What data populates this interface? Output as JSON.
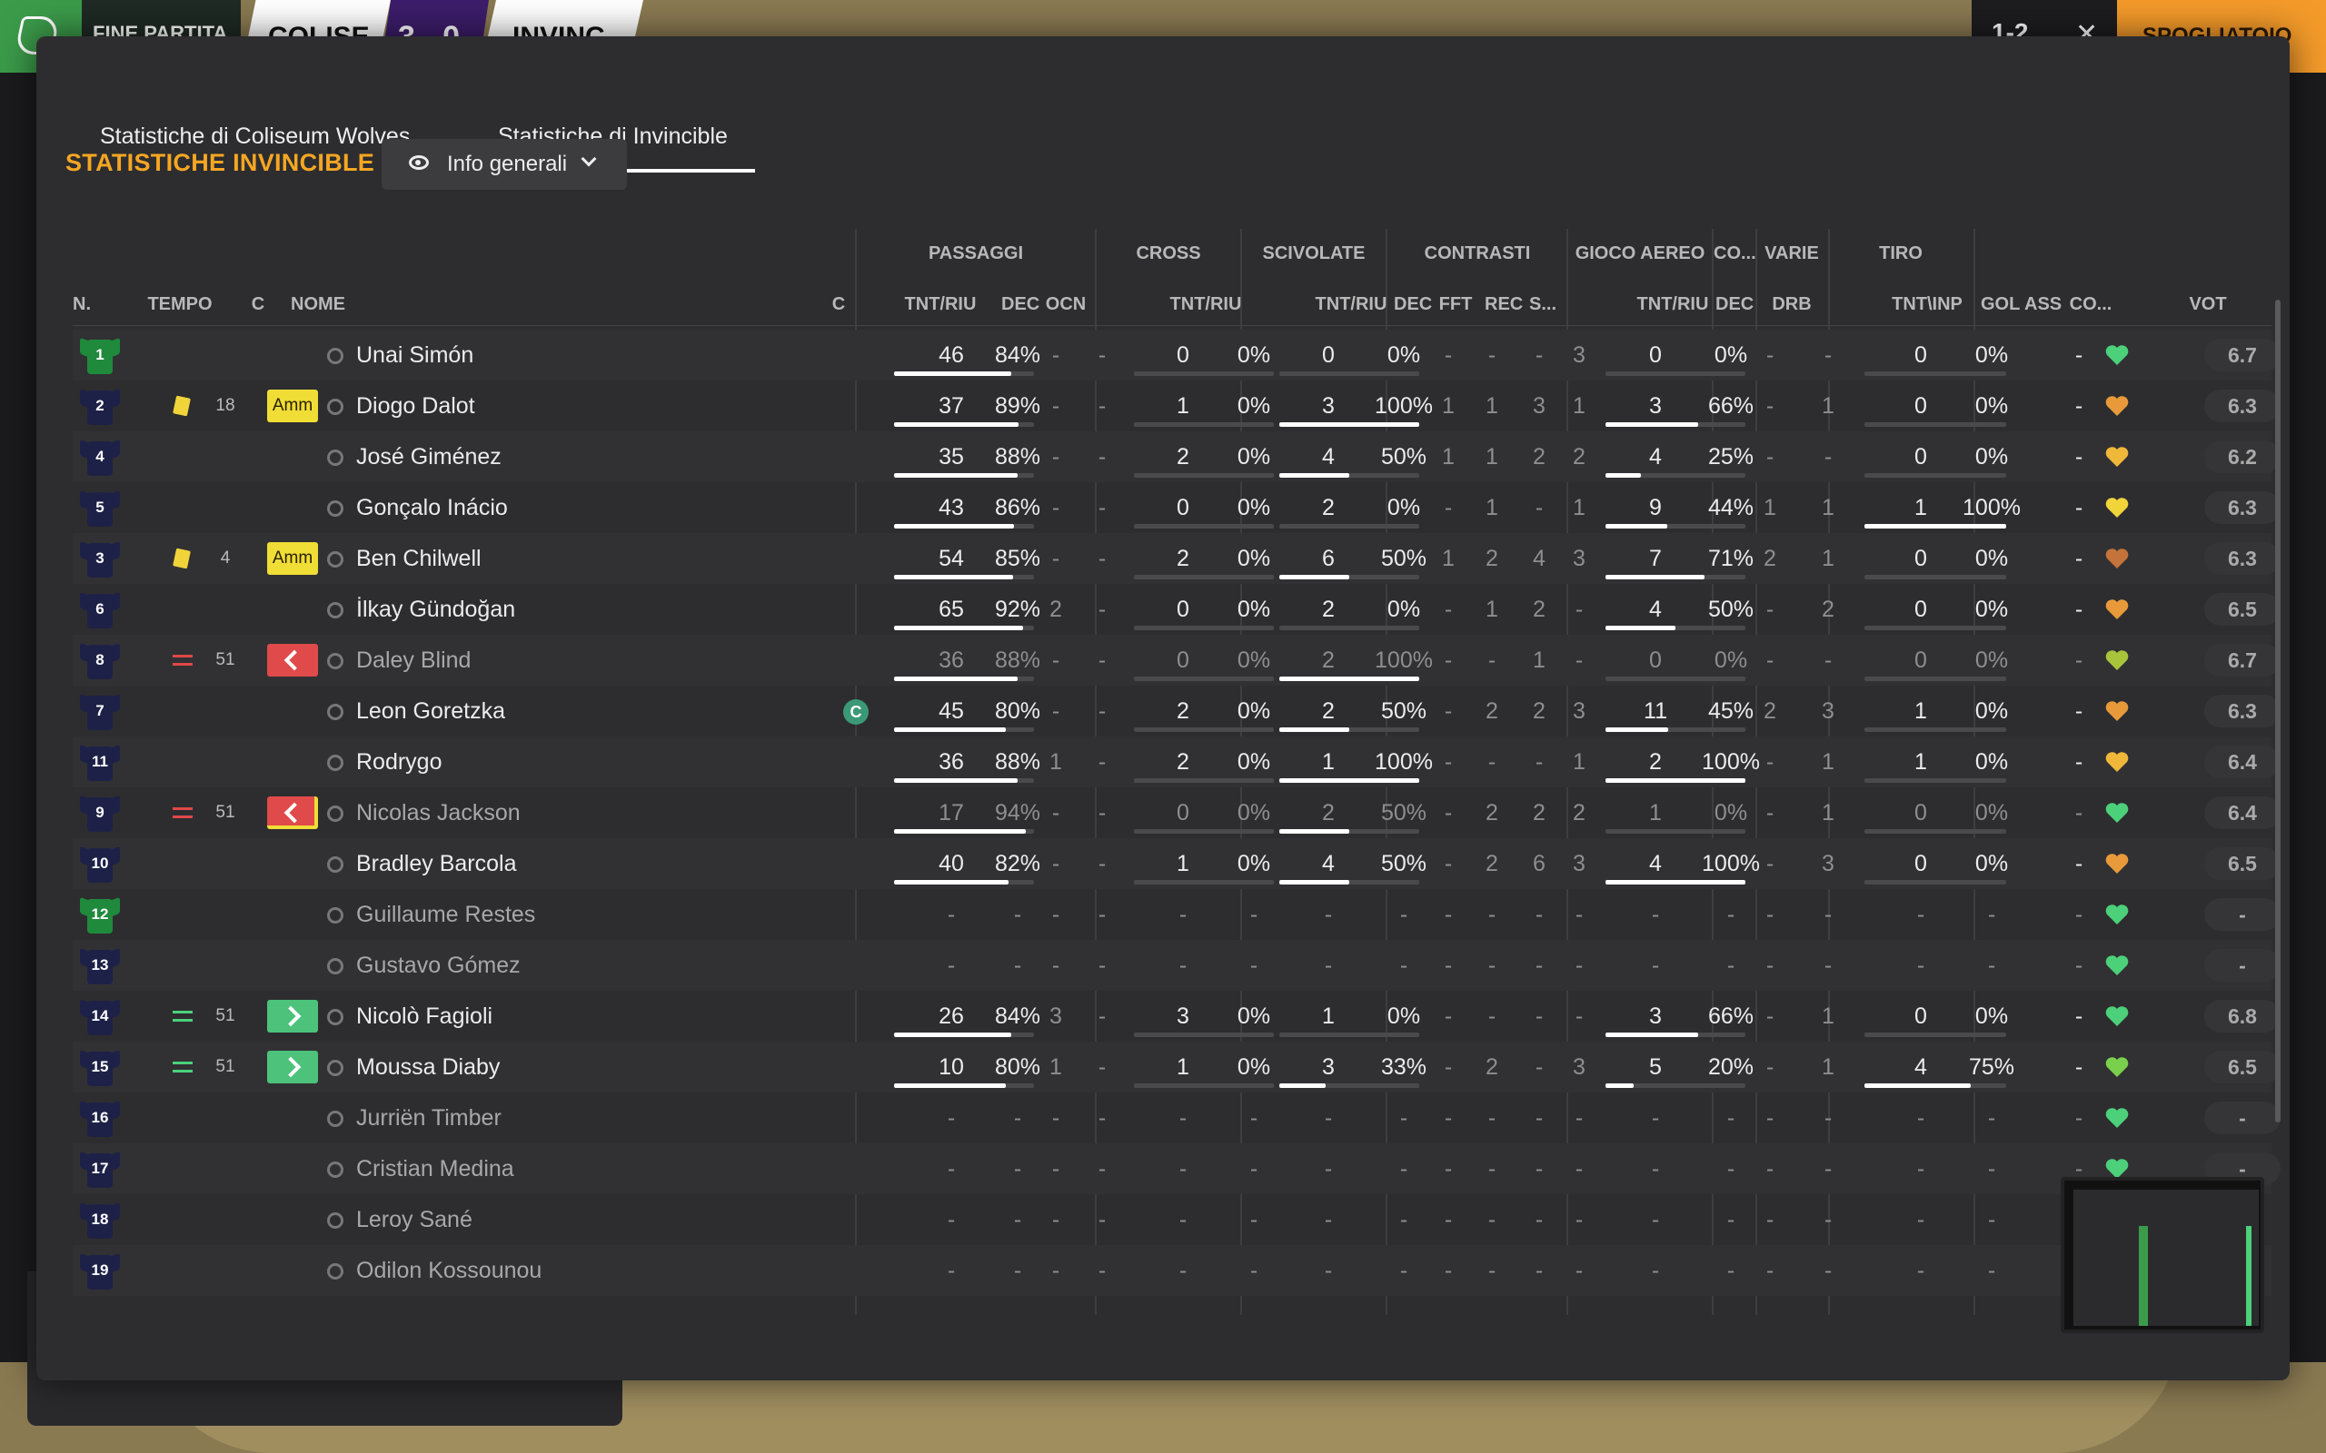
{
  "topbar": {
    "status": "FINE PARTITA",
    "home_short": "COLISE",
    "score": "3 - 0",
    "away_short": "INVINC",
    "right_score": "1-2",
    "close_icon": "close-icon",
    "action": "SPOGLIATOIO"
  },
  "tabs": [
    {
      "label": "Statistiche di Coliseum Wolves",
      "active": false
    },
    {
      "label": "Statistiche di Invincible",
      "active": true
    }
  ],
  "team_title": "STATISTICHE INVINCIBLE",
  "view_dropdown": {
    "label": "Info generali",
    "icon": "eye-icon"
  },
  "groups": {
    "passaggi": "PASSAGGI",
    "cross": "CROSS",
    "scivolate": "SCIVOLATE",
    "contrasti": "CONTRASTI",
    "gioco_aereo": "GIOCO AEREO",
    "co": "CO...",
    "varie": "VARIE",
    "tiro": "TIRO"
  },
  "headers": {
    "n": "N.",
    "tempo": "TEMPO",
    "c": "C",
    "nome": "NOME",
    "c2": "C",
    "pass_tnt": "TNT/RIU",
    "pass_dec": "DEC",
    "pass_ocn": "OCN",
    "cross_tnt": "TNT/RIU",
    "sciv_tnt": "TNT/RIU",
    "con_dec": "DEC",
    "con_fft": "FFT",
    "con_rec": "REC",
    "con_s": "S...",
    "aereo_tnt": "TNT/RIU",
    "co_dec": "DEC",
    "varie_drb": "DRB",
    "tiro_tnt": "TNT\\INP",
    "gol": "GOL",
    "ass": "ASS",
    "cond": "CO...",
    "vot": "VOT"
  },
  "players": [
    {
      "n": "1",
      "gk": true,
      "card": "",
      "time": "",
      "badge": "",
      "name": "Unai Simón",
      "dim": false,
      "cap": false,
      "p1": "46",
      "p2": "84%",
      "pbar": 0.84,
      "pdec": "-",
      "pocn": "-",
      "c1": "0",
      "c2": "0%",
      "cbar": 0,
      "s1": "0",
      "s2": "0%",
      "sbar": 0,
      "k1": "-",
      "k2": "-",
      "k3": "-",
      "k4": "3",
      "a1": "0",
      "a2": "0%",
      "abar": 0,
      "codec": "-",
      "drb": "-",
      "t1": "0",
      "t2": "0%",
      "tbar": 0,
      "gol": "",
      "ass": "-",
      "heart": "#4cd07a",
      "vot": "6.7"
    },
    {
      "n": "2",
      "gk": false,
      "card": "yellow",
      "time": "18",
      "badge": "amm",
      "name": "Diogo Dalot",
      "dim": false,
      "cap": false,
      "p1": "37",
      "p2": "89%",
      "pbar": 0.89,
      "pdec": "-",
      "pocn": "-",
      "c1": "1",
      "c2": "0%",
      "cbar": 0,
      "s1": "3",
      "s2": "100%",
      "sbar": 1,
      "k1": "1",
      "k2": "1",
      "k3": "3",
      "k4": "1",
      "a1": "3",
      "a2": "66%",
      "abar": 0.66,
      "codec": "-",
      "drb": "1",
      "t1": "0",
      "t2": "0%",
      "tbar": 0,
      "gol": "",
      "ass": "-",
      "heart": "#e89a3a",
      "vot": "6.3"
    },
    {
      "n": "4",
      "gk": false,
      "card": "",
      "time": "",
      "badge": "",
      "name": "José Giménez",
      "dim": false,
      "cap": false,
      "p1": "35",
      "p2": "88%",
      "pbar": 0.88,
      "pdec": "-",
      "pocn": "-",
      "c1": "2",
      "c2": "0%",
      "cbar": 0,
      "s1": "4",
      "s2": "50%",
      "sbar": 0.5,
      "k1": "1",
      "k2": "1",
      "k3": "2",
      "k4": "2",
      "a1": "4",
      "a2": "25%",
      "abar": 0.25,
      "codec": "-",
      "drb": "-",
      "t1": "0",
      "t2": "0%",
      "tbar": 0,
      "gol": "",
      "ass": "-",
      "heart": "#f0b83a",
      "vot": "6.2"
    },
    {
      "n": "5",
      "gk": false,
      "card": "",
      "time": "",
      "badge": "",
      "name": "Gonçalo Inácio",
      "dim": false,
      "cap": false,
      "p1": "43",
      "p2": "86%",
      "pbar": 0.86,
      "pdec": "-",
      "pocn": "-",
      "c1": "0",
      "c2": "0%",
      "cbar": 0,
      "s1": "2",
      "s2": "0%",
      "sbar": 0,
      "k1": "-",
      "k2": "1",
      "k3": "-",
      "k4": "1",
      "a1": "9",
      "a2": "44%",
      "abar": 0.44,
      "codec": "1",
      "drb": "1",
      "t1": "1",
      "t2": "100%",
      "tbar": 1,
      "gol": "",
      "ass": "-",
      "heart": "#f0d43a",
      "vot": "6.3"
    },
    {
      "n": "3",
      "gk": false,
      "card": "yellow",
      "time": "4",
      "badge": "amm",
      "name": "Ben Chilwell",
      "dim": false,
      "cap": false,
      "p1": "54",
      "p2": "85%",
      "pbar": 0.85,
      "pdec": "-",
      "pocn": "-",
      "c1": "2",
      "c2": "0%",
      "cbar": 0,
      "s1": "6",
      "s2": "50%",
      "sbar": 0.5,
      "k1": "1",
      "k2": "2",
      "k3": "4",
      "k4": "3",
      "a1": "7",
      "a2": "71%",
      "abar": 0.71,
      "codec": "2",
      "drb": "1",
      "t1": "0",
      "t2": "0%",
      "tbar": 0,
      "gol": "",
      "ass": "-",
      "heart": "#c4733a",
      "vot": "6.3"
    },
    {
      "n": "6",
      "gk": false,
      "card": "",
      "time": "",
      "badge": "",
      "name": "İlkay Gündoğan",
      "dim": false,
      "cap": false,
      "p1": "65",
      "p2": "92%",
      "pbar": 0.92,
      "pdec": "2",
      "pocn": "-",
      "c1": "0",
      "c2": "0%",
      "cbar": 0,
      "s1": "2",
      "s2": "0%",
      "sbar": 0,
      "k1": "-",
      "k2": "1",
      "k3": "2",
      "k4": "-",
      "a1": "4",
      "a2": "50%",
      "abar": 0.5,
      "codec": "-",
      "drb": "2",
      "t1": "0",
      "t2": "0%",
      "tbar": 0,
      "gol": "",
      "ass": "-",
      "heart": "#e89a3a",
      "vot": "6.5"
    },
    {
      "n": "8",
      "gk": false,
      "card": "subout",
      "time": "51",
      "badge": "out",
      "name": "Daley Blind",
      "dim": true,
      "cap": false,
      "p1": "36",
      "p2": "88%",
      "pbar": 0.88,
      "pdec": "-",
      "pocn": "-",
      "c1": "0",
      "c2": "0%",
      "cbar": 0,
      "s1": "2",
      "s2": "100%",
      "sbar": 1,
      "k1": "-",
      "k2": "-",
      "k3": "1",
      "k4": "-",
      "a1": "0",
      "a2": "0%",
      "abar": 0,
      "codec": "-",
      "drb": "-",
      "t1": "0",
      "t2": "0%",
      "tbar": 0,
      "gol": "",
      "ass": "-",
      "heart": "#a8c43a",
      "vot": "6.7"
    },
    {
      "n": "7",
      "gk": false,
      "card": "",
      "time": "",
      "badge": "",
      "name": "Leon Goretzka",
      "dim": false,
      "cap": true,
      "cap_label": "C",
      "p1": "45",
      "p2": "80%",
      "pbar": 0.8,
      "pdec": "-",
      "pocn": "-",
      "c1": "2",
      "c2": "0%",
      "cbar": 0,
      "s1": "2",
      "s2": "50%",
      "sbar": 0.5,
      "k1": "-",
      "k2": "2",
      "k3": "2",
      "k4": "3",
      "a1": "11",
      "a2": "45%",
      "abar": 0.45,
      "codec": "2",
      "drb": "3",
      "t1": "1",
      "t2": "0%",
      "tbar": 0,
      "gol": "",
      "ass": "-",
      "heart": "#e89a3a",
      "vot": "6.3"
    },
    {
      "n": "11",
      "gk": false,
      "card": "",
      "time": "",
      "badge": "",
      "name": "Rodrygo",
      "dim": false,
      "cap": false,
      "p1": "36",
      "p2": "88%",
      "pbar": 0.88,
      "pdec": "1",
      "pocn": "-",
      "c1": "2",
      "c2": "0%",
      "cbar": 0,
      "s1": "1",
      "s2": "100%",
      "sbar": 1,
      "k1": "-",
      "k2": "-",
      "k3": "-",
      "k4": "1",
      "a1": "2",
      "a2": "100%",
      "abar": 1,
      "codec": "-",
      "drb": "1",
      "t1": "1",
      "t2": "0%",
      "tbar": 0,
      "gol": "",
      "ass": "-",
      "heart": "#f0b83a",
      "vot": "6.4"
    },
    {
      "n": "9",
      "gk": false,
      "card": "subout",
      "time": "51",
      "badge": "outcut",
      "name": "Nicolas Jackson",
      "dim": true,
      "cap": false,
      "p1": "17",
      "p2": "94%",
      "pbar": 0.94,
      "pdec": "-",
      "pocn": "-",
      "c1": "0",
      "c2": "0%",
      "cbar": 0,
      "s1": "2",
      "s2": "50%",
      "sbar": 0.5,
      "k1": "-",
      "k2": "2",
      "k3": "2",
      "k4": "2",
      "a1": "1",
      "a2": "0%",
      "abar": 0,
      "codec": "-",
      "drb": "1",
      "t1": "0",
      "t2": "0%",
      "tbar": 0,
      "gol": "",
      "ass": "-",
      "heart": "#4cd07a",
      "vot": "6.4"
    },
    {
      "n": "10",
      "gk": false,
      "card": "",
      "time": "",
      "badge": "",
      "name": "Bradley Barcola",
      "dim": false,
      "cap": false,
      "p1": "40",
      "p2": "82%",
      "pbar": 0.82,
      "pdec": "-",
      "pocn": "-",
      "c1": "1",
      "c2": "0%",
      "cbar": 0,
      "s1": "4",
      "s2": "50%",
      "sbar": 0.5,
      "k1": "-",
      "k2": "2",
      "k3": "6",
      "k4": "3",
      "a1": "4",
      "a2": "100%",
      "abar": 1,
      "codec": "-",
      "drb": "3",
      "t1": "0",
      "t2": "0%",
      "tbar": 0,
      "gol": "",
      "ass": "-",
      "heart": "#e89a3a",
      "vot": "6.5"
    },
    {
      "n": "12",
      "gk": true,
      "card": "",
      "time": "",
      "badge": "",
      "name": "Guillaume Restes",
      "dim": true,
      "cap": false,
      "p1": "-",
      "p2": "-",
      "pbar": -1,
      "pdec": "-",
      "pocn": "-",
      "c1": "-",
      "c2": "-",
      "cbar": -1,
      "s1": "-",
      "s2": "-",
      "sbar": -1,
      "k1": "-",
      "k2": "-",
      "k3": "-",
      "k4": "-",
      "a1": "-",
      "a2": "-",
      "abar": -1,
      "codec": "-",
      "drb": "-",
      "t1": "-",
      "t2": "-",
      "tbar": -1,
      "gol": "",
      "ass": "-",
      "heart": "#4cd07a",
      "vot": "-"
    },
    {
      "n": "13",
      "gk": false,
      "card": "",
      "time": "",
      "badge": "",
      "name": "Gustavo Gómez",
      "dim": true,
      "cap": false,
      "p1": "-",
      "p2": "-",
      "pbar": -1,
      "pdec": "-",
      "pocn": "-",
      "c1": "-",
      "c2": "-",
      "cbar": -1,
      "s1": "-",
      "s2": "-",
      "sbar": -1,
      "k1": "-",
      "k2": "-",
      "k3": "-",
      "k4": "-",
      "a1": "-",
      "a2": "-",
      "abar": -1,
      "codec": "-",
      "drb": "-",
      "t1": "-",
      "t2": "-",
      "tbar": -1,
      "gol": "",
      "ass": "-",
      "heart": "#4cd07a",
      "vot": "-"
    },
    {
      "n": "14",
      "gk": false,
      "card": "subin",
      "time": "51",
      "badge": "in",
      "name": "Nicolò Fagioli",
      "dim": false,
      "cap": false,
      "p1": "26",
      "p2": "84%",
      "pbar": 0.84,
      "pdec": "3",
      "pocn": "-",
      "c1": "3",
      "c2": "0%",
      "cbar": 0,
      "s1": "1",
      "s2": "0%",
      "sbar": 0,
      "k1": "-",
      "k2": "-",
      "k3": "-",
      "k4": "-",
      "a1": "3",
      "a2": "66%",
      "abar": 0.66,
      "codec": "-",
      "drb": "1",
      "t1": "0",
      "t2": "0%",
      "tbar": 0,
      "gol": "",
      "ass": "-",
      "heart": "#4cd07a",
      "vot": "6.8"
    },
    {
      "n": "15",
      "gk": false,
      "card": "subin",
      "time": "51",
      "badge": "in",
      "name": "Moussa Diaby",
      "dim": false,
      "cap": false,
      "p1": "10",
      "p2": "80%",
      "pbar": 0.8,
      "pdec": "1",
      "pocn": "-",
      "c1": "1",
      "c2": "0%",
      "cbar": 0,
      "s1": "3",
      "s2": "33%",
      "sbar": 0.33,
      "k1": "-",
      "k2": "2",
      "k3": "-",
      "k4": "3",
      "a1": "5",
      "a2": "20%",
      "abar": 0.2,
      "codec": "-",
      "drb": "1",
      "t1": "4",
      "t2": "75%",
      "tbar": 0.75,
      "gol": "",
      "ass": "-",
      "heart": "#7ad04c",
      "vot": "6.5"
    },
    {
      "n": "16",
      "gk": false,
      "card": "",
      "time": "",
      "badge": "",
      "name": "Jurriën Timber",
      "dim": true,
      "cap": false,
      "p1": "-",
      "p2": "-",
      "pbar": -1,
      "pdec": "-",
      "pocn": "-",
      "c1": "-",
      "c2": "-",
      "cbar": -1,
      "s1": "-",
      "s2": "-",
      "sbar": -1,
      "k1": "-",
      "k2": "-",
      "k3": "-",
      "k4": "-",
      "a1": "-",
      "a2": "-",
      "abar": -1,
      "codec": "-",
      "drb": "-",
      "t1": "-",
      "t2": "-",
      "tbar": -1,
      "gol": "",
      "ass": "-",
      "heart": "#4cd07a",
      "vot": "-"
    },
    {
      "n": "17",
      "gk": false,
      "card": "",
      "time": "",
      "badge": "",
      "name": "Cristian Medina",
      "dim": true,
      "cap": false,
      "p1": "-",
      "p2": "-",
      "pbar": -1,
      "pdec": "-",
      "pocn": "-",
      "c1": "-",
      "c2": "-",
      "cbar": -1,
      "s1": "-",
      "s2": "-",
      "sbar": -1,
      "k1": "-",
      "k2": "-",
      "k3": "-",
      "k4": "-",
      "a1": "-",
      "a2": "-",
      "abar": -1,
      "codec": "-",
      "drb": "-",
      "t1": "-",
      "t2": "-",
      "tbar": -1,
      "gol": "",
      "ass": "-",
      "heart": "#4cd07a",
      "vot": "-"
    },
    {
      "n": "18",
      "gk": false,
      "card": "",
      "time": "",
      "badge": "",
      "name": "Leroy Sané",
      "dim": true,
      "cap": false,
      "p1": "-",
      "p2": "-",
      "pbar": -1,
      "pdec": "-",
      "pocn": "-",
      "c1": "-",
      "c2": "-",
      "cbar": -1,
      "s1": "-",
      "s2": "-",
      "sbar": -1,
      "k1": "-",
      "k2": "-",
      "k3": "-",
      "k4": "-",
      "a1": "-",
      "a2": "-",
      "abar": -1,
      "codec": "-",
      "drb": "-",
      "t1": "-",
      "t2": "-",
      "tbar": -1,
      "gol": "",
      "ass": "-",
      "heart": "",
      "vot": ""
    },
    {
      "n": "19",
      "gk": false,
      "card": "",
      "time": "",
      "badge": "",
      "name": "Odilon Kossounou",
      "dim": true,
      "cap": false,
      "p1": "-",
      "p2": "-",
      "pbar": -1,
      "pdec": "-",
      "pocn": "-",
      "c1": "-",
      "c2": "-",
      "cbar": -1,
      "s1": "-",
      "s2": "-",
      "sbar": -1,
      "k1": "-",
      "k2": "-",
      "k3": "-",
      "k4": "-",
      "a1": "-",
      "a2": "-",
      "abar": -1,
      "codec": "-",
      "drb": "-",
      "t1": "-",
      "t2": "-",
      "tbar": -1,
      "gol": "",
      "ass": "-",
      "heart": "",
      "vot": ""
    }
  ]
}
